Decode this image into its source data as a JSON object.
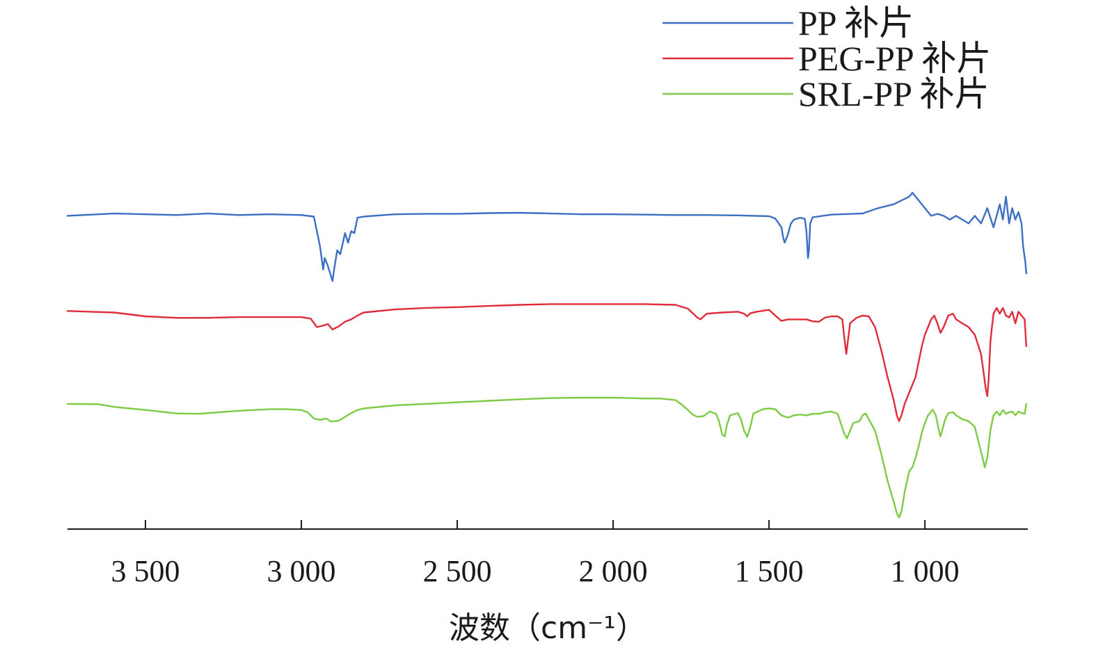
{
  "chart_data": {
    "type": "line",
    "title": "",
    "xlabel": "波数（cm⁻¹）",
    "ylabel": "",
    "x_reversed": true,
    "xlim": [
      3750,
      670
    ],
    "xticks": [
      3500,
      3000,
      2500,
      2000,
      1500,
      1000
    ],
    "xtick_labels": [
      "3 500",
      "3 000",
      "2 500",
      "2 000",
      "1 500",
      "1 000"
    ],
    "y_axis_shown": false,
    "ylim": [
      0,
      100
    ],
    "grid": false,
    "legend_position": "top-right",
    "series": [
      {
        "name": "PP 补片",
        "color": "#3A6FC4",
        "points": [
          [
            3750,
            80
          ],
          [
            3600,
            80.6
          ],
          [
            3500,
            80.4
          ],
          [
            3400,
            80.2
          ],
          [
            3300,
            80.6
          ],
          [
            3200,
            80.2
          ],
          [
            3100,
            80.4
          ],
          [
            3000,
            80.2
          ],
          [
            2960,
            79.8
          ],
          [
            2950,
            76
          ],
          [
            2940,
            72
          ],
          [
            2930,
            66
          ],
          [
            2925,
            69
          ],
          [
            2915,
            67
          ],
          [
            2900,
            63
          ],
          [
            2895,
            66
          ],
          [
            2885,
            71
          ],
          [
            2875,
            70
          ],
          [
            2860,
            75.5
          ],
          [
            2850,
            73
          ],
          [
            2840,
            76
          ],
          [
            2830,
            75.5
          ],
          [
            2820,
            79.5
          ],
          [
            2800,
            79.8
          ],
          [
            2700,
            80.4
          ],
          [
            2600,
            80.5
          ],
          [
            2500,
            80.5
          ],
          [
            2400,
            80.7
          ],
          [
            2300,
            80.8
          ],
          [
            2200,
            80.6
          ],
          [
            2100,
            80.4
          ],
          [
            2000,
            80.4
          ],
          [
            1900,
            80.3
          ],
          [
            1800,
            80.2
          ],
          [
            1700,
            80.2
          ],
          [
            1600,
            80.1
          ],
          [
            1500,
            79.9
          ],
          [
            1480,
            79.3
          ],
          [
            1460,
            77
          ],
          [
            1455,
            74.5
          ],
          [
            1450,
            73
          ],
          [
            1440,
            75
          ],
          [
            1430,
            78
          ],
          [
            1420,
            79
          ],
          [
            1400,
            79.5
          ],
          [
            1385,
            79.2
          ],
          [
            1380,
            76
          ],
          [
            1375,
            69
          ],
          [
            1372,
            71
          ],
          [
            1368,
            78
          ],
          [
            1360,
            79.6
          ],
          [
            1300,
            80.3
          ],
          [
            1200,
            80.6
          ],
          [
            1150,
            82
          ],
          [
            1100,
            83
          ],
          [
            1050,
            85
          ],
          [
            1040,
            86
          ],
          [
            1030,
            85
          ],
          [
            1020,
            84
          ],
          [
            1000,
            82
          ],
          [
            980,
            80
          ],
          [
            960,
            80.5
          ],
          [
            940,
            80
          ],
          [
            920,
            79
          ],
          [
            900,
            80
          ],
          [
            880,
            79
          ],
          [
            860,
            78
          ],
          [
            840,
            80
          ],
          [
            820,
            78
          ],
          [
            800,
            82
          ],
          [
            780,
            77
          ],
          [
            760,
            83
          ],
          [
            750,
            79
          ],
          [
            740,
            85
          ],
          [
            730,
            78
          ],
          [
            720,
            82
          ],
          [
            710,
            79
          ],
          [
            700,
            81
          ],
          [
            690,
            78
          ],
          [
            685,
            72
          ],
          [
            678,
            68
          ],
          [
            675,
            65
          ]
        ]
      },
      {
        "name": "PEG-PP 补片",
        "color": "#E02B38",
        "points": [
          [
            3750,
            55.2
          ],
          [
            3600,
            54.8
          ],
          [
            3500,
            53.8
          ],
          [
            3400,
            53.4
          ],
          [
            3300,
            53.4
          ],
          [
            3200,
            53.6
          ],
          [
            3100,
            53.6
          ],
          [
            3000,
            53.6
          ],
          [
            2970,
            53.2
          ],
          [
            2950,
            51
          ],
          [
            2930,
            51.4
          ],
          [
            2915,
            51.8
          ],
          [
            2900,
            50.4
          ],
          [
            2880,
            51.2
          ],
          [
            2860,
            52.4
          ],
          [
            2840,
            53
          ],
          [
            2820,
            54
          ],
          [
            2800,
            54.8
          ],
          [
            2700,
            55.6
          ],
          [
            2600,
            56
          ],
          [
            2500,
            56.2
          ],
          [
            2400,
            56.5
          ],
          [
            2300,
            56.8
          ],
          [
            2200,
            57
          ],
          [
            2100,
            57
          ],
          [
            2000,
            57
          ],
          [
            1900,
            57
          ],
          [
            1800,
            56.8
          ],
          [
            1760,
            55.8
          ],
          [
            1730,
            53.5
          ],
          [
            1720,
            53
          ],
          [
            1700,
            54.5
          ],
          [
            1650,
            54.8
          ],
          [
            1600,
            55
          ],
          [
            1580,
            54.5
          ],
          [
            1570,
            53.8
          ],
          [
            1560,
            54.6
          ],
          [
            1540,
            55
          ],
          [
            1500,
            55.5
          ],
          [
            1480,
            54
          ],
          [
            1460,
            52.6
          ],
          [
            1440,
            53
          ],
          [
            1420,
            53
          ],
          [
            1400,
            53
          ],
          [
            1380,
            53
          ],
          [
            1360,
            52.5
          ],
          [
            1340,
            52.4
          ],
          [
            1320,
            53.5
          ],
          [
            1300,
            53.8
          ],
          [
            1280,
            53.8
          ],
          [
            1265,
            53
          ],
          [
            1258,
            48
          ],
          [
            1252,
            44
          ],
          [
            1246,
            48
          ],
          [
            1240,
            52
          ],
          [
            1220,
            53.4
          ],
          [
            1200,
            54
          ],
          [
            1180,
            53.8
          ],
          [
            1160,
            51
          ],
          [
            1140,
            45
          ],
          [
            1120,
            38
          ],
          [
            1100,
            32
          ],
          [
            1090,
            28
          ],
          [
            1083,
            26.5
          ],
          [
            1075,
            28
          ],
          [
            1065,
            31
          ],
          [
            1050,
            34
          ],
          [
            1040,
            36
          ],
          [
            1030,
            38
          ],
          [
            1020,
            42
          ],
          [
            1010,
            46
          ],
          [
            1000,
            49
          ],
          [
            990,
            51
          ],
          [
            980,
            53
          ],
          [
            970,
            54
          ],
          [
            960,
            52
          ],
          [
            950,
            49.5
          ],
          [
            940,
            51
          ],
          [
            925,
            54
          ],
          [
            910,
            54.5
          ],
          [
            900,
            53
          ],
          [
            880,
            52
          ],
          [
            860,
            51
          ],
          [
            840,
            49
          ],
          [
            820,
            44
          ],
          [
            810,
            38
          ],
          [
            805,
            35
          ],
          [
            800,
            33
          ],
          [
            795,
            38
          ],
          [
            790,
            47
          ],
          [
            785,
            51
          ],
          [
            780,
            54.5
          ],
          [
            770,
            56
          ],
          [
            760,
            54.5
          ],
          [
            750,
            56
          ],
          [
            740,
            54
          ],
          [
            730,
            53.5
          ],
          [
            720,
            55
          ],
          [
            710,
            52
          ],
          [
            700,
            55
          ],
          [
            690,
            54
          ],
          [
            680,
            53
          ],
          [
            675,
            46
          ]
        ]
      },
      {
        "name": "SRL-PP 补片",
        "color": "#7DCB45",
        "points": [
          [
            3750,
            31
          ],
          [
            3650,
            30.9
          ],
          [
            3600,
            30.2
          ],
          [
            3500,
            29.4
          ],
          [
            3400,
            28.5
          ],
          [
            3330,
            28.4
          ],
          [
            3250,
            28.9
          ],
          [
            3200,
            29.2
          ],
          [
            3150,
            29.4
          ],
          [
            3100,
            29.6
          ],
          [
            3050,
            29.6
          ],
          [
            3000,
            29.4
          ],
          [
            2980,
            28.8
          ],
          [
            2960,
            27.2
          ],
          [
            2940,
            26.8
          ],
          [
            2920,
            27.2
          ],
          [
            2905,
            26.4
          ],
          [
            2880,
            26.6
          ],
          [
            2860,
            27.6
          ],
          [
            2840,
            28.6
          ],
          [
            2820,
            29.4
          ],
          [
            2800,
            29.8
          ],
          [
            2700,
            30.6
          ],
          [
            2600,
            31
          ],
          [
            2500,
            31.4
          ],
          [
            2400,
            31.8
          ],
          [
            2300,
            32.2
          ],
          [
            2200,
            32.5
          ],
          [
            2100,
            32.6
          ],
          [
            2000,
            32.6
          ],
          [
            1900,
            32.4
          ],
          [
            1850,
            32.4
          ],
          [
            1800,
            32
          ],
          [
            1780,
            30.8
          ],
          [
            1760,
            29.4
          ],
          [
            1745,
            28.2
          ],
          [
            1730,
            27.6
          ],
          [
            1710,
            27.8
          ],
          [
            1690,
            29
          ],
          [
            1670,
            28.4
          ],
          [
            1660,
            26.4
          ],
          [
            1650,
            23
          ],
          [
            1642,
            22.5
          ],
          [
            1635,
            25.5
          ],
          [
            1625,
            28
          ],
          [
            1600,
            28.6
          ],
          [
            1590,
            27
          ],
          [
            1580,
            24
          ],
          [
            1570,
            22.4
          ],
          [
            1560,
            25
          ],
          [
            1550,
            28.5
          ],
          [
            1520,
            29.6
          ],
          [
            1500,
            29.8
          ],
          [
            1480,
            29.6
          ],
          [
            1460,
            28
          ],
          [
            1440,
            27.4
          ],
          [
            1420,
            28
          ],
          [
            1400,
            28.2
          ],
          [
            1380,
            28
          ],
          [
            1360,
            28.4
          ],
          [
            1340,
            28.4
          ],
          [
            1320,
            28.8
          ],
          [
            1300,
            29
          ],
          [
            1280,
            28.4
          ],
          [
            1270,
            26
          ],
          [
            1260,
            23.5
          ],
          [
            1250,
            22
          ],
          [
            1240,
            24
          ],
          [
            1230,
            26
          ],
          [
            1210,
            26.5
          ],
          [
            1200,
            28
          ],
          [
            1190,
            28.5
          ],
          [
            1180,
            27
          ],
          [
            1160,
            24
          ],
          [
            1140,
            18
          ],
          [
            1120,
            11
          ],
          [
            1100,
            5.5
          ],
          [
            1090,
            2.5
          ],
          [
            1083,
            1.4
          ],
          [
            1075,
            3
          ],
          [
            1065,
            8
          ],
          [
            1050,
            13.5
          ],
          [
            1040,
            14.5
          ],
          [
            1030,
            17
          ],
          [
            1020,
            20
          ],
          [
            1010,
            23.5
          ],
          [
            1000,
            26
          ],
          [
            990,
            28
          ],
          [
            975,
            29.5
          ],
          [
            965,
            28
          ],
          [
            955,
            24
          ],
          [
            950,
            22.5
          ],
          [
            945,
            24
          ],
          [
            935,
            27
          ],
          [
            925,
            28.6
          ],
          [
            910,
            28.8
          ],
          [
            900,
            28
          ],
          [
            880,
            27
          ],
          [
            860,
            26.5
          ],
          [
            840,
            25
          ],
          [
            825,
            20
          ],
          [
            815,
            17
          ],
          [
            808,
            14.4
          ],
          [
            800,
            17
          ],
          [
            790,
            24
          ],
          [
            780,
            28
          ],
          [
            770,
            29
          ],
          [
            760,
            28
          ],
          [
            750,
            29.4
          ],
          [
            740,
            28.4
          ],
          [
            730,
            28.8
          ],
          [
            720,
            29
          ],
          [
            710,
            28
          ],
          [
            700,
            29
          ],
          [
            690,
            28.6
          ],
          [
            680,
            28.4
          ],
          [
            675,
            31
          ]
        ]
      }
    ]
  }
}
